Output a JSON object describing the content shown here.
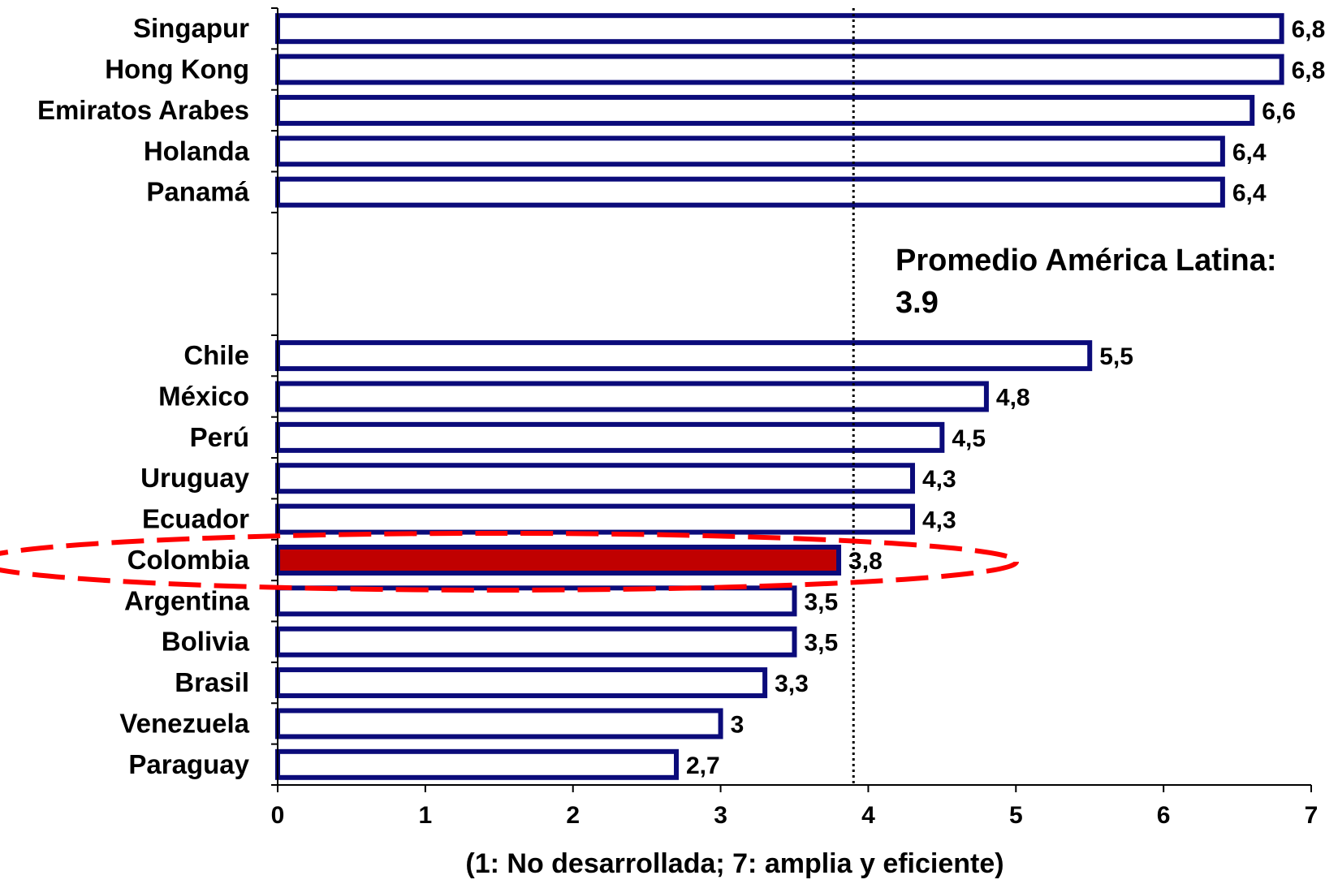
{
  "chart_data": {
    "type": "bar",
    "orientation": "horizontal",
    "categories": [
      "Singapur",
      "Hong Kong",
      "Emiratos Arabes",
      "Holanda",
      "Panamá",
      "",
      "",
      "",
      "Chile",
      "México",
      "Perú",
      "Uruguay",
      "Ecuador",
      "Colombia",
      "Argentina",
      "Bolivia",
      "Brasil",
      "Venezuela",
      "Paraguay"
    ],
    "values": [
      6.8,
      6.8,
      6.6,
      6.4,
      6.4,
      null,
      null,
      null,
      5.5,
      4.8,
      4.5,
      4.3,
      4.3,
      3.8,
      3.5,
      3.5,
      3.3,
      3.0,
      2.7
    ],
    "value_labels": [
      "6,8",
      "6,8",
      "6,6",
      "6,4",
      "6,4",
      "",
      "",
      "",
      "5,5",
      "4,8",
      "4,5",
      "4,3",
      "4,3",
      "3,8",
      "3,5",
      "3,5",
      "3,3",
      "3",
      "2,7"
    ],
    "highlight_category": "Colombia",
    "xlabel": "(1: No desarrollada; 7: amplia y eficiente)",
    "xlim": [
      0,
      7
    ],
    "xticks": [
      "0",
      "1",
      "2",
      "3",
      "4",
      "5",
      "6",
      "7"
    ],
    "reference_line": {
      "value": 3.9,
      "style": "dotted"
    },
    "annotation": {
      "line1": "Promedio América Latina:",
      "line2": "3.9"
    },
    "colors": {
      "bar_outline": "#0b0b7a",
      "bar_fill": "#ffffff",
      "highlight_fill": "#c00000",
      "highlight_ellipse": "#ff0000"
    },
    "grid": false
  }
}
